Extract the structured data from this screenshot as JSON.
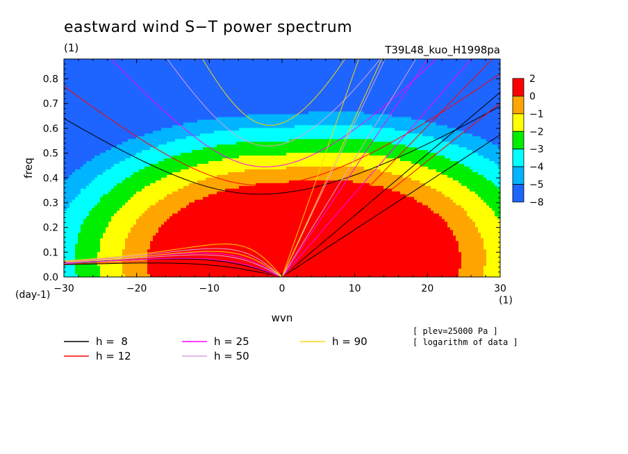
{
  "chart_data": {
    "type": "heatmap",
    "title": "eastward wind S−T power spectrum",
    "subtitle_left": "(1)",
    "subtitle_right": "T39L48_kuo_H1998pa",
    "xlabel": "wvn",
    "ylabel": "freq",
    "x_unit": "(1)",
    "y_unit": "(day-1)",
    "xlim": [
      -30,
      30
    ],
    "ylim": [
      0,
      0.88
    ],
    "x_ticks": [
      -30,
      -20,
      -10,
      0,
      10,
      20,
      30
    ],
    "x_tick_labels": [
      "−30",
      "−20",
      "−10",
      "0",
      "10",
      "20",
      "30"
    ],
    "y_ticks": [
      0.0,
      0.1,
      0.2,
      0.3,
      0.4,
      0.5,
      0.6,
      0.7,
      0.8
    ],
    "y_tick_labels": [
      "0.0",
      "0.1",
      "0.2",
      "0.3",
      "0.4",
      "0.5",
      "0.6",
      "0.7",
      "0.8"
    ],
    "colorbar": {
      "levels": [
        "2",
        "0",
        "−1",
        "−2",
        "−3",
        "−4",
        "−5",
        "−8"
      ],
      "colors": [
        "#ff0000",
        "#ffa500",
        "#ffff00",
        "#00ee00",
        "#00ffff",
        "#00b4ff",
        "#1e64ff"
      ]
    },
    "contour_levels": [
      -1,
      -2,
      -3,
      -4,
      -5,
      -6
    ],
    "filled_contours": "logarithm of power as a function of zonal wavenumber and frequency; maximum near wvn 0–8, freq 0–0.1",
    "dispersion_curves": [
      {
        "label": "h =  8",
        "h": 8,
        "color": "#000000"
      },
      {
        "label": "h = 12",
        "h": 12,
        "color": "#ff0000"
      },
      {
        "label": "h = 25",
        "h": 25,
        "color": "#ff00ff"
      },
      {
        "label": "h = 50",
        "h": 50,
        "color": "#dda0dd"
      },
      {
        "label": "h = 90",
        "h": 90,
        "color": "#ffd700"
      }
    ],
    "annotations": [
      "[ plev=25000 Pa ]",
      "[ logarithm of data ]"
    ]
  }
}
